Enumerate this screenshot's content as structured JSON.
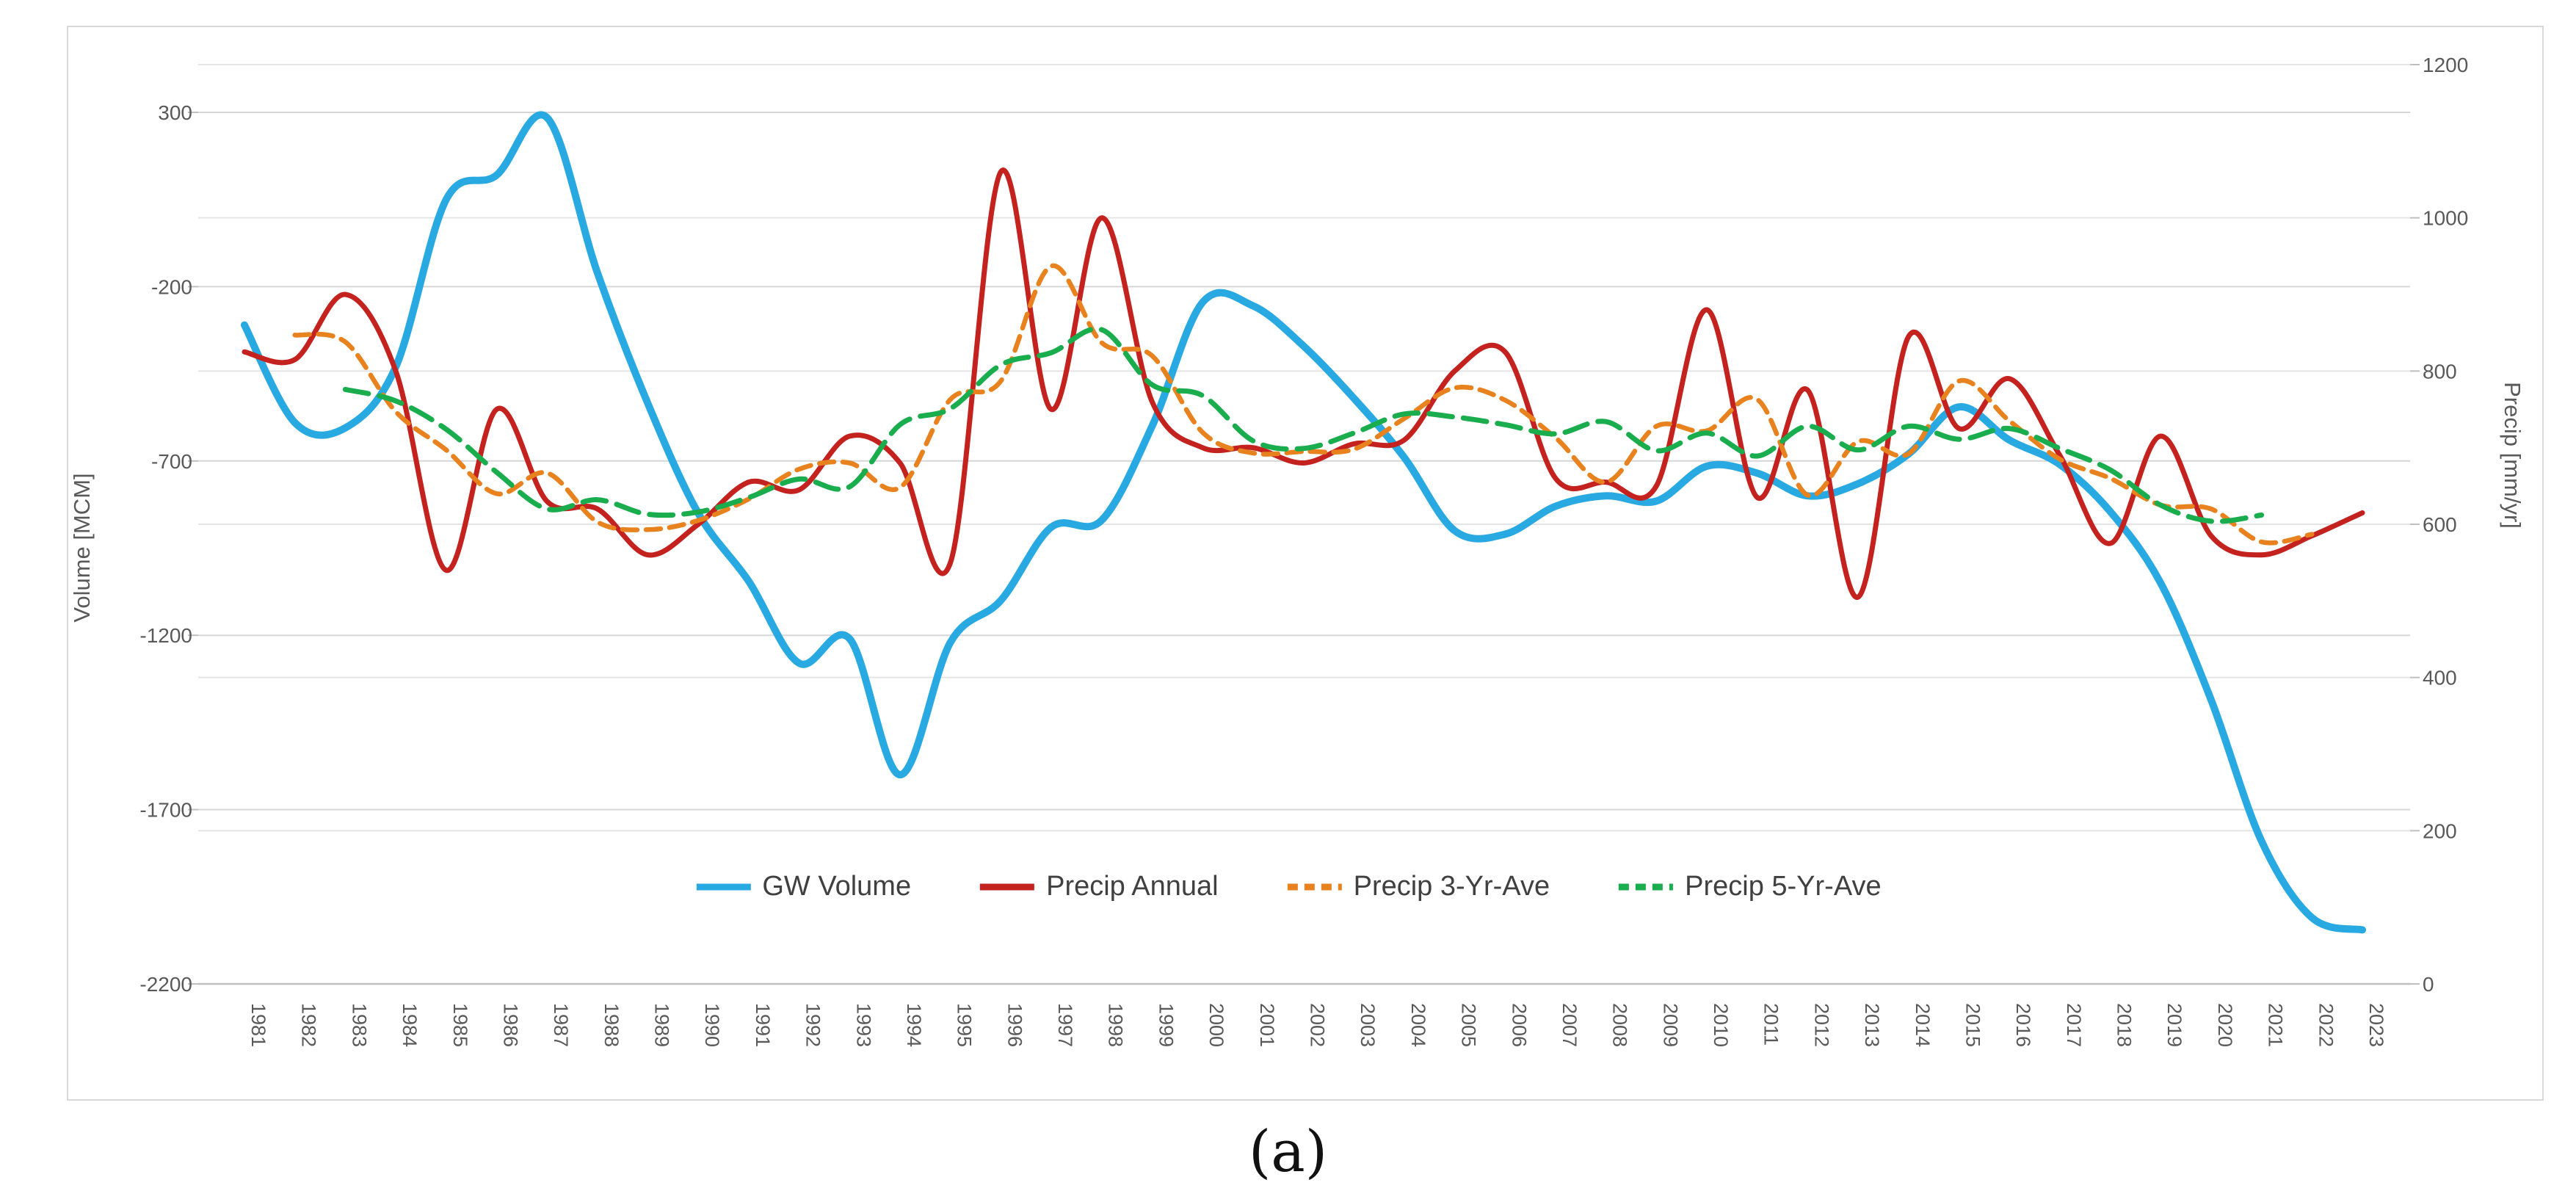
{
  "caption": "(a)",
  "chart_data": {
    "type": "line",
    "title": "",
    "grid": true,
    "x": [
      1981,
      1982,
      1983,
      1984,
      1985,
      1986,
      1987,
      1988,
      1989,
      1990,
      1991,
      1992,
      1993,
      1994,
      1995,
      1996,
      1997,
      1998,
      1999,
      2000,
      2001,
      2002,
      2003,
      2004,
      2005,
      2006,
      2007,
      2008,
      2009,
      2010,
      2011,
      2012,
      2013,
      2014,
      2015,
      2016,
      2017,
      2018,
      2019,
      2020,
      2021,
      2022,
      2023
    ],
    "x_label_rotation": 90,
    "axes": {
      "left": {
        "label": "Volume [MCM]",
        "min": -2200,
        "max": 300,
        "ticks": [
          300,
          -200,
          -700,
          -1200,
          -1700,
          -2200
        ]
      },
      "right": {
        "label": "Precip [mm/yr]",
        "min": 0,
        "max": 1200,
        "ticks": [
          1200,
          1000,
          800,
          600,
          400,
          200,
          0
        ]
      }
    },
    "legend": {
      "position": "bottom-center",
      "entries": [
        "GW Volume",
        "Precip Annual",
        "Precip 3-Yr-Ave",
        "Precip 5-Yr-Ave"
      ]
    },
    "series": [
      {
        "name": "GW Volume",
        "axis": "left",
        "color": "#29A9E1",
        "style": "solid",
        "width": 10,
        "values": [
          -310,
          -590,
          -605,
          -430,
          50,
          120,
          285,
          -160,
          -535,
          -850,
          -1045,
          -1280,
          -1210,
          -1600,
          -1220,
          -1100,
          -890,
          -870,
          -600,
          -245,
          -255,
          -370,
          -520,
          -690,
          -900,
          -910,
          -830,
          -800,
          -815,
          -715,
          -735,
          -800,
          -765,
          -680,
          -545,
          -640,
          -710,
          -845,
          -1050,
          -1385,
          -1790,
          -2010,
          -2045
        ]
      },
      {
        "name": "Precip Annual",
        "axis": "right",
        "color": "#C4221F",
        "style": "solid",
        "width": 7,
        "values": [
          825,
          815,
          900,
          800,
          540,
          750,
          630,
          620,
          560,
          600,
          655,
          645,
          715,
          680,
          550,
          1060,
          750,
          1000,
          760,
          700,
          700,
          680,
          705,
          710,
          800,
          825,
          660,
          655,
          650,
          880,
          635,
          775,
          505,
          845,
          725,
          790,
          690,
          575,
          715,
          585,
          560,
          585,
          615
        ]
      },
      {
        "name": "Precip 3-Yr-Ave",
        "axis": "right",
        "color": "#E8821E",
        "style": "dashed",
        "dash": "20 12",
        "width": 6.5,
        "values": [
          null,
          847,
          838,
          747,
          697,
          640,
          667,
          603,
          593,
          605,
          633,
          672,
          680,
          648,
          763,
          787,
          937,
          837,
          820,
          720,
          693,
          695,
          698,
          738,
          778,
          762,
          713,
          655,
          728,
          722,
          763,
          638,
          708,
          692,
          787,
          735,
          685,
          660,
          625,
          620,
          577,
          587,
          null
        ]
      },
      {
        "name": "Precip 5-Yr-Ave",
        "axis": "right",
        "color": "#1AAD4E",
        "style": "dashed",
        "dash": "32 15",
        "width": 7,
        "values": [
          null,
          null,
          776,
          761,
          724,
          668,
          620,
          632,
          613,
          616,
          635,
          659,
          649,
          730,
          751,
          808,
          824,
          854,
          782,
          768,
          709,
          699,
          719,
          744,
          740,
          730,
          718,
          734,
          696,
          719,
          689,
          728,
          697,
          728,
          711,
          725,
          699,
          671,
          625,
          604,
          612,
          null,
          null
        ]
      }
    ]
  }
}
